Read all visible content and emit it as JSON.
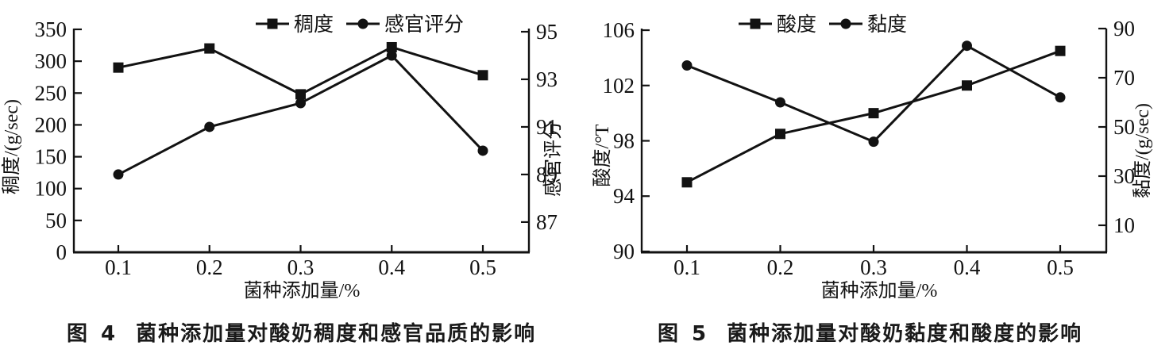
{
  "figure": {
    "background": "#ffffff",
    "ink_color": "#121212"
  },
  "chart_data": [
    {
      "type": "line",
      "caption_label": "图 4",
      "title": "菌种添加量对酸奶稠度和感官品质的影响",
      "x": [
        0.1,
        0.2,
        0.3,
        0.4,
        0.5
      ],
      "x_tick_labels": [
        "0.1",
        "0.2",
        "0.3",
        "0.4",
        "0.5"
      ],
      "xlabel": "菌种添加量/%",
      "left_axis": {
        "label": "稠度/(g/sec)",
        "ticks": [
          0,
          50,
          100,
          150,
          200,
          250,
          300,
          350
        ],
        "range": [
          0,
          350
        ]
      },
      "right_axis": {
        "label": "感官评分",
        "ticks": [
          87,
          89,
          91,
          93,
          95
        ],
        "range": [
          85.73,
          95.1
        ]
      },
      "legend_position": "top",
      "grid": false,
      "series": [
        {
          "name": "稠度",
          "axis": "left",
          "marker": "square",
          "values": [
            290,
            320,
            248,
            322,
            278
          ]
        },
        {
          "name": "感官评分",
          "axis": "right",
          "marker": "circle",
          "values": [
            89,
            91,
            92,
            94,
            90
          ]
        }
      ]
    },
    {
      "type": "line",
      "caption_label": "图 5",
      "title": "菌种添加量对酸奶黏度和酸度的影响",
      "x": [
        0.1,
        0.2,
        0.3,
        0.4,
        0.5
      ],
      "x_tick_labels": [
        "0.1",
        "0.2",
        "0.3",
        "0.4",
        "0.5"
      ],
      "xlabel": "菌种添加量/%",
      "left_axis": {
        "label": "酸度/°T",
        "ticks": [
          90,
          94,
          98,
          102,
          106
        ],
        "range": [
          89.94,
          106.06
        ]
      },
      "right_axis": {
        "label": "黏度/(g/sec)",
        "ticks": [
          10,
          30,
          50,
          70,
          90
        ],
        "range": [
          -0.97,
          89.68
        ]
      },
      "legend_position": "top",
      "grid": false,
      "series": [
        {
          "name": "酸度",
          "axis": "left",
          "marker": "square",
          "values": [
            95,
            98.5,
            100,
            102,
            104.5
          ]
        },
        {
          "name": "黏度",
          "axis": "right",
          "marker": "circle",
          "values": [
            75,
            60,
            44,
            83,
            62
          ]
        }
      ]
    }
  ]
}
